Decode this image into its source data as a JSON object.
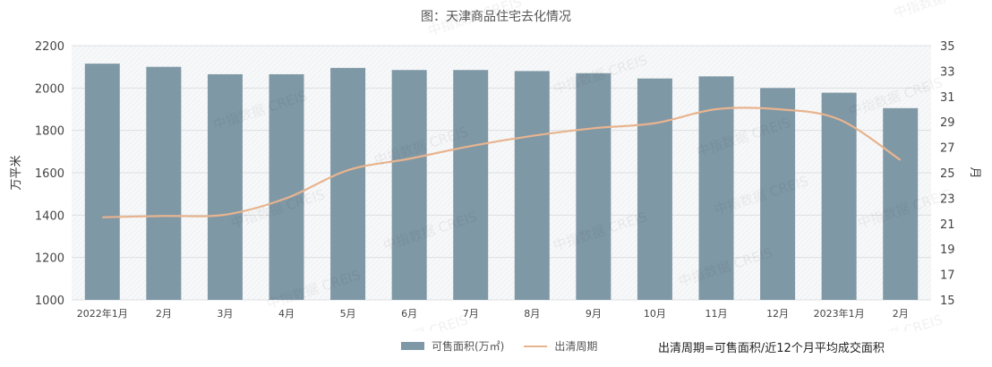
{
  "chart_data": {
    "type": "bar+line",
    "title": "图：天津商品住宅去化情况",
    "categories": [
      "2022年1月",
      "2月",
      "3月",
      "4月",
      "5月",
      "6月",
      "7月",
      "8月",
      "9月",
      "10月",
      "11月",
      "12月",
      "2023年1月",
      "2月"
    ],
    "series": [
      {
        "name": "可售面积(万㎡)",
        "type": "bar",
        "axis": "left",
        "color": "#7f98a6",
        "values": [
          2115,
          2100,
          2065,
          2065,
          2095,
          2085,
          2085,
          2080,
          2070,
          2045,
          2055,
          2000,
          1978,
          1905
        ]
      },
      {
        "name": "出清周期",
        "type": "line",
        "axis": "right",
        "color": "#e8b48f",
        "values": [
          21.5,
          21.6,
          21.7,
          23.0,
          25.2,
          26.1,
          27.1,
          27.9,
          28.5,
          28.9,
          30.0,
          30.0,
          29.2,
          26.0
        ]
      }
    ],
    "ylabel": "万平米",
    "ylabel_right": "月",
    "ylim": [
      1000,
      2200
    ],
    "yticks": [
      1000,
      1200,
      1400,
      1600,
      1800,
      2000,
      2200
    ],
    "ylim_right": [
      15,
      35
    ],
    "yticks_right": [
      15,
      17,
      19,
      21,
      23,
      25,
      27,
      29,
      31,
      33,
      35
    ],
    "grid": true,
    "legend_position": "bottom",
    "annotation": "出清周期=可售面积/近12个月平均成交面积"
  },
  "legend": {
    "bar_label": "可售面积(万㎡)",
    "line_label": "出清周期"
  },
  "watermark": "中指数据 CREIS"
}
